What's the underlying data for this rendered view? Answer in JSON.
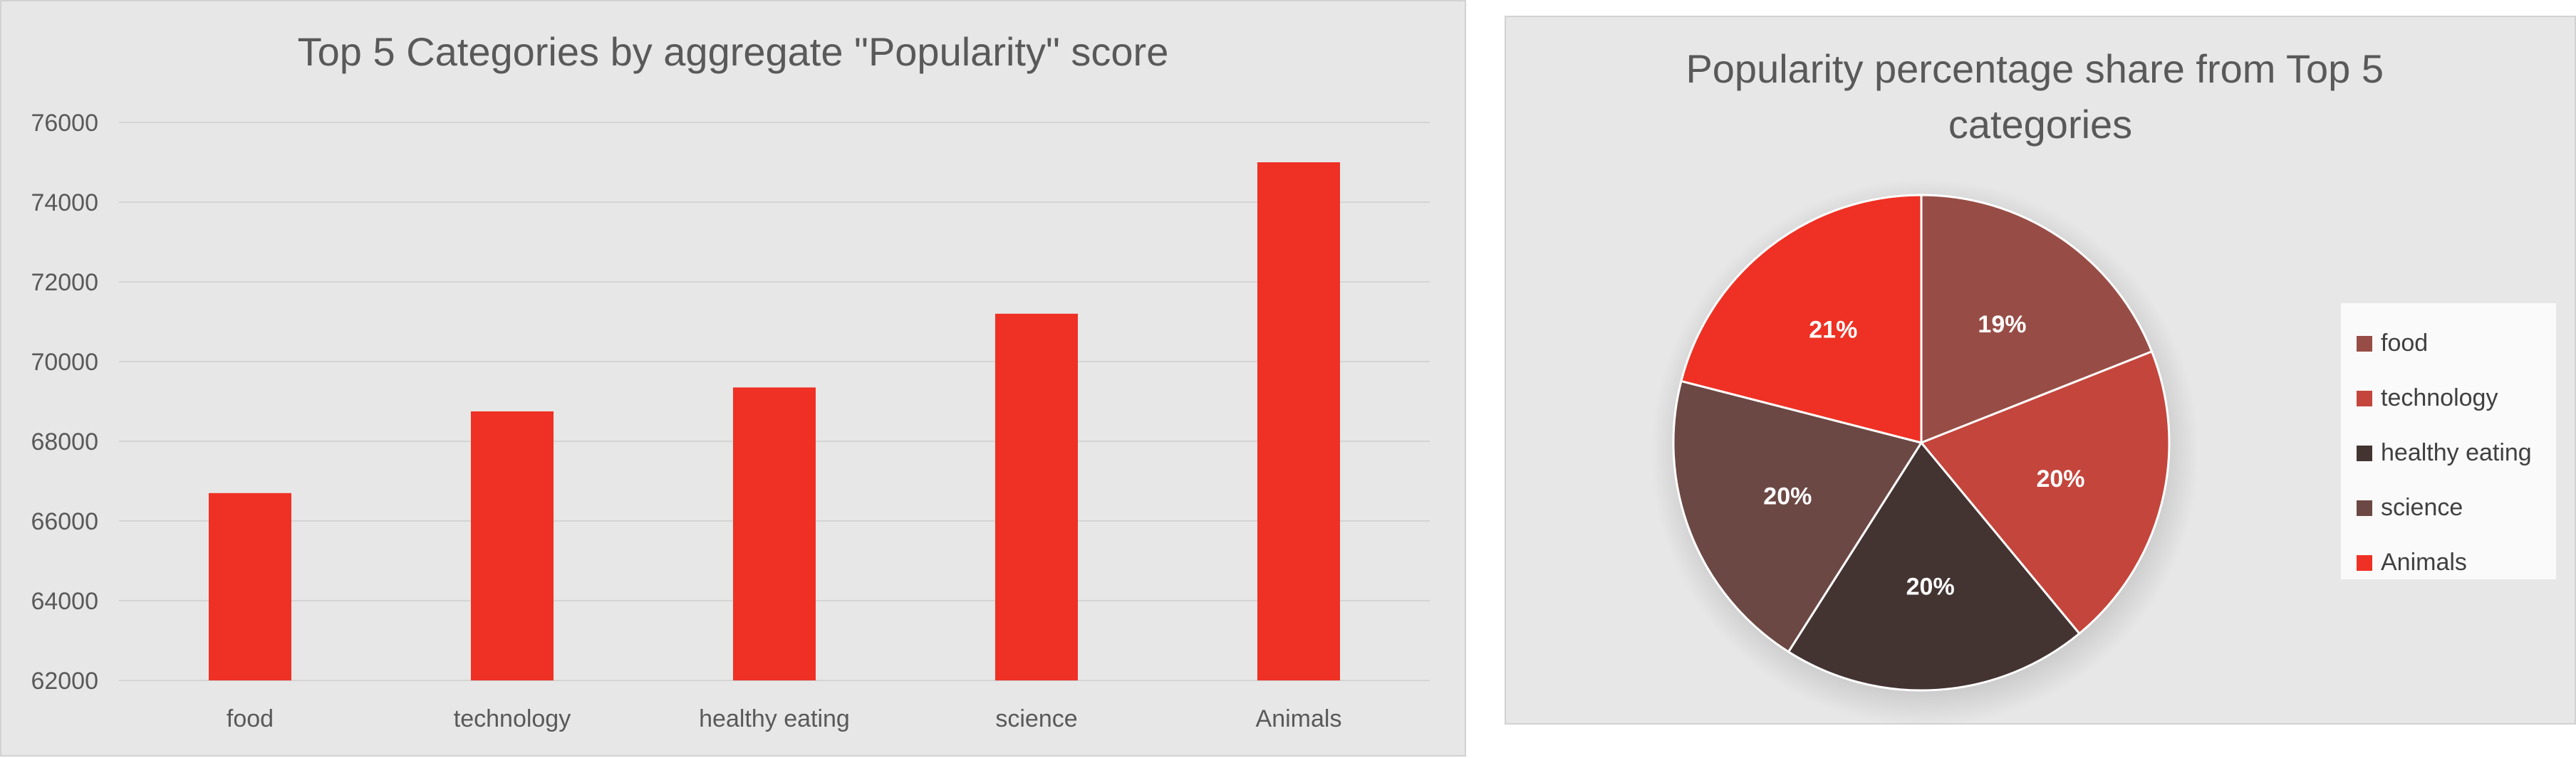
{
  "chart_data": [
    {
      "type": "bar",
      "title": "Top 5 Categories by aggregate \"Popularity\" score",
      "categories": [
        "food",
        "technology",
        "healthy eating",
        "science",
        "Animals"
      ],
      "values": [
        66700,
        68750,
        69350,
        71200,
        75000
      ],
      "ylim": [
        62000,
        76000
      ],
      "y_ticks": [
        62000,
        64000,
        66000,
        68000,
        70000,
        72000,
        74000,
        76000
      ],
      "y_tick_labels": [
        "62000",
        "64000",
        "66000",
        "68000",
        "70000",
        "72000",
        "74000",
        "76000"
      ],
      "xlabel": "",
      "ylabel": "",
      "grid": true,
      "legend": "none",
      "color": "#ee3124"
    },
    {
      "type": "pie",
      "title": "Popularity percentage share from Top 5 categories",
      "labels": [
        "food",
        "technology",
        "healthy eating",
        "science",
        "Animals"
      ],
      "values": [
        19,
        20,
        20,
        20,
        21
      ],
      "data_labels": [
        "19%",
        "20%",
        "20%",
        "20%",
        "21%"
      ],
      "colors": [
        "#974d46",
        "#c4453c",
        "#433432",
        "#6c4844",
        "#ee3124"
      ],
      "legend": "right"
    }
  ]
}
